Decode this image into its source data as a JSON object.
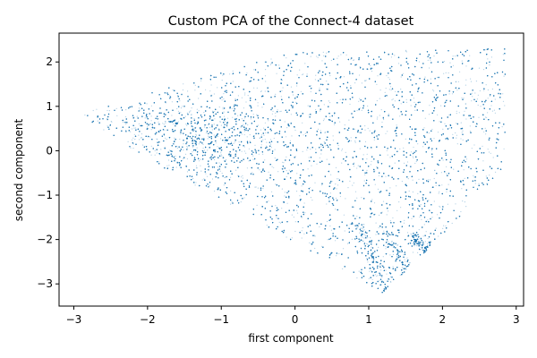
{
  "chart_data": {
    "type": "scatter",
    "title": "Custom PCA of the Connect-4 dataset",
    "xlabel": "first component",
    "ylabel": "second component",
    "xlim": [
      -3.2,
      3.1
    ],
    "ylim": [
      -3.5,
      2.65
    ],
    "xticks": [
      -3,
      -2,
      -1,
      0,
      1,
      2,
      3
    ],
    "yticks": [
      -3,
      -2,
      -1,
      0,
      1,
      2
    ],
    "grid": false,
    "marker_color": "#1f77b4",
    "marker_opacity": 0.35,
    "point_count_rendered": 26000,
    "series": [
      {
        "points_sample": [
          [
            -2.9,
            0.75
          ],
          [
            -2.7,
            0.55
          ],
          [
            -2.4,
            0.3
          ],
          [
            -2.0,
            0.6
          ],
          [
            -1.8,
            0.0
          ],
          [
            -1.5,
            -0.6
          ],
          [
            -1.2,
            1.1
          ],
          [
            -1.0,
            0.2
          ],
          [
            -0.8,
            -1.2
          ],
          [
            -0.5,
            1.5
          ],
          [
            -0.3,
            -2.1
          ],
          [
            0.0,
            1.9
          ],
          [
            0.2,
            0.4
          ],
          [
            0.5,
            -1.0
          ],
          [
            0.8,
            1.6
          ],
          [
            1.0,
            -2.6
          ],
          [
            1.2,
            -3.2
          ],
          [
            1.5,
            -2.8
          ],
          [
            1.8,
            -2.4
          ],
          [
            2.0,
            2.1
          ],
          [
            2.2,
            1.0
          ],
          [
            2.5,
            0.2
          ],
          [
            2.7,
            -0.9
          ],
          [
            2.85,
            -0.1
          ]
        ]
      }
    ]
  }
}
